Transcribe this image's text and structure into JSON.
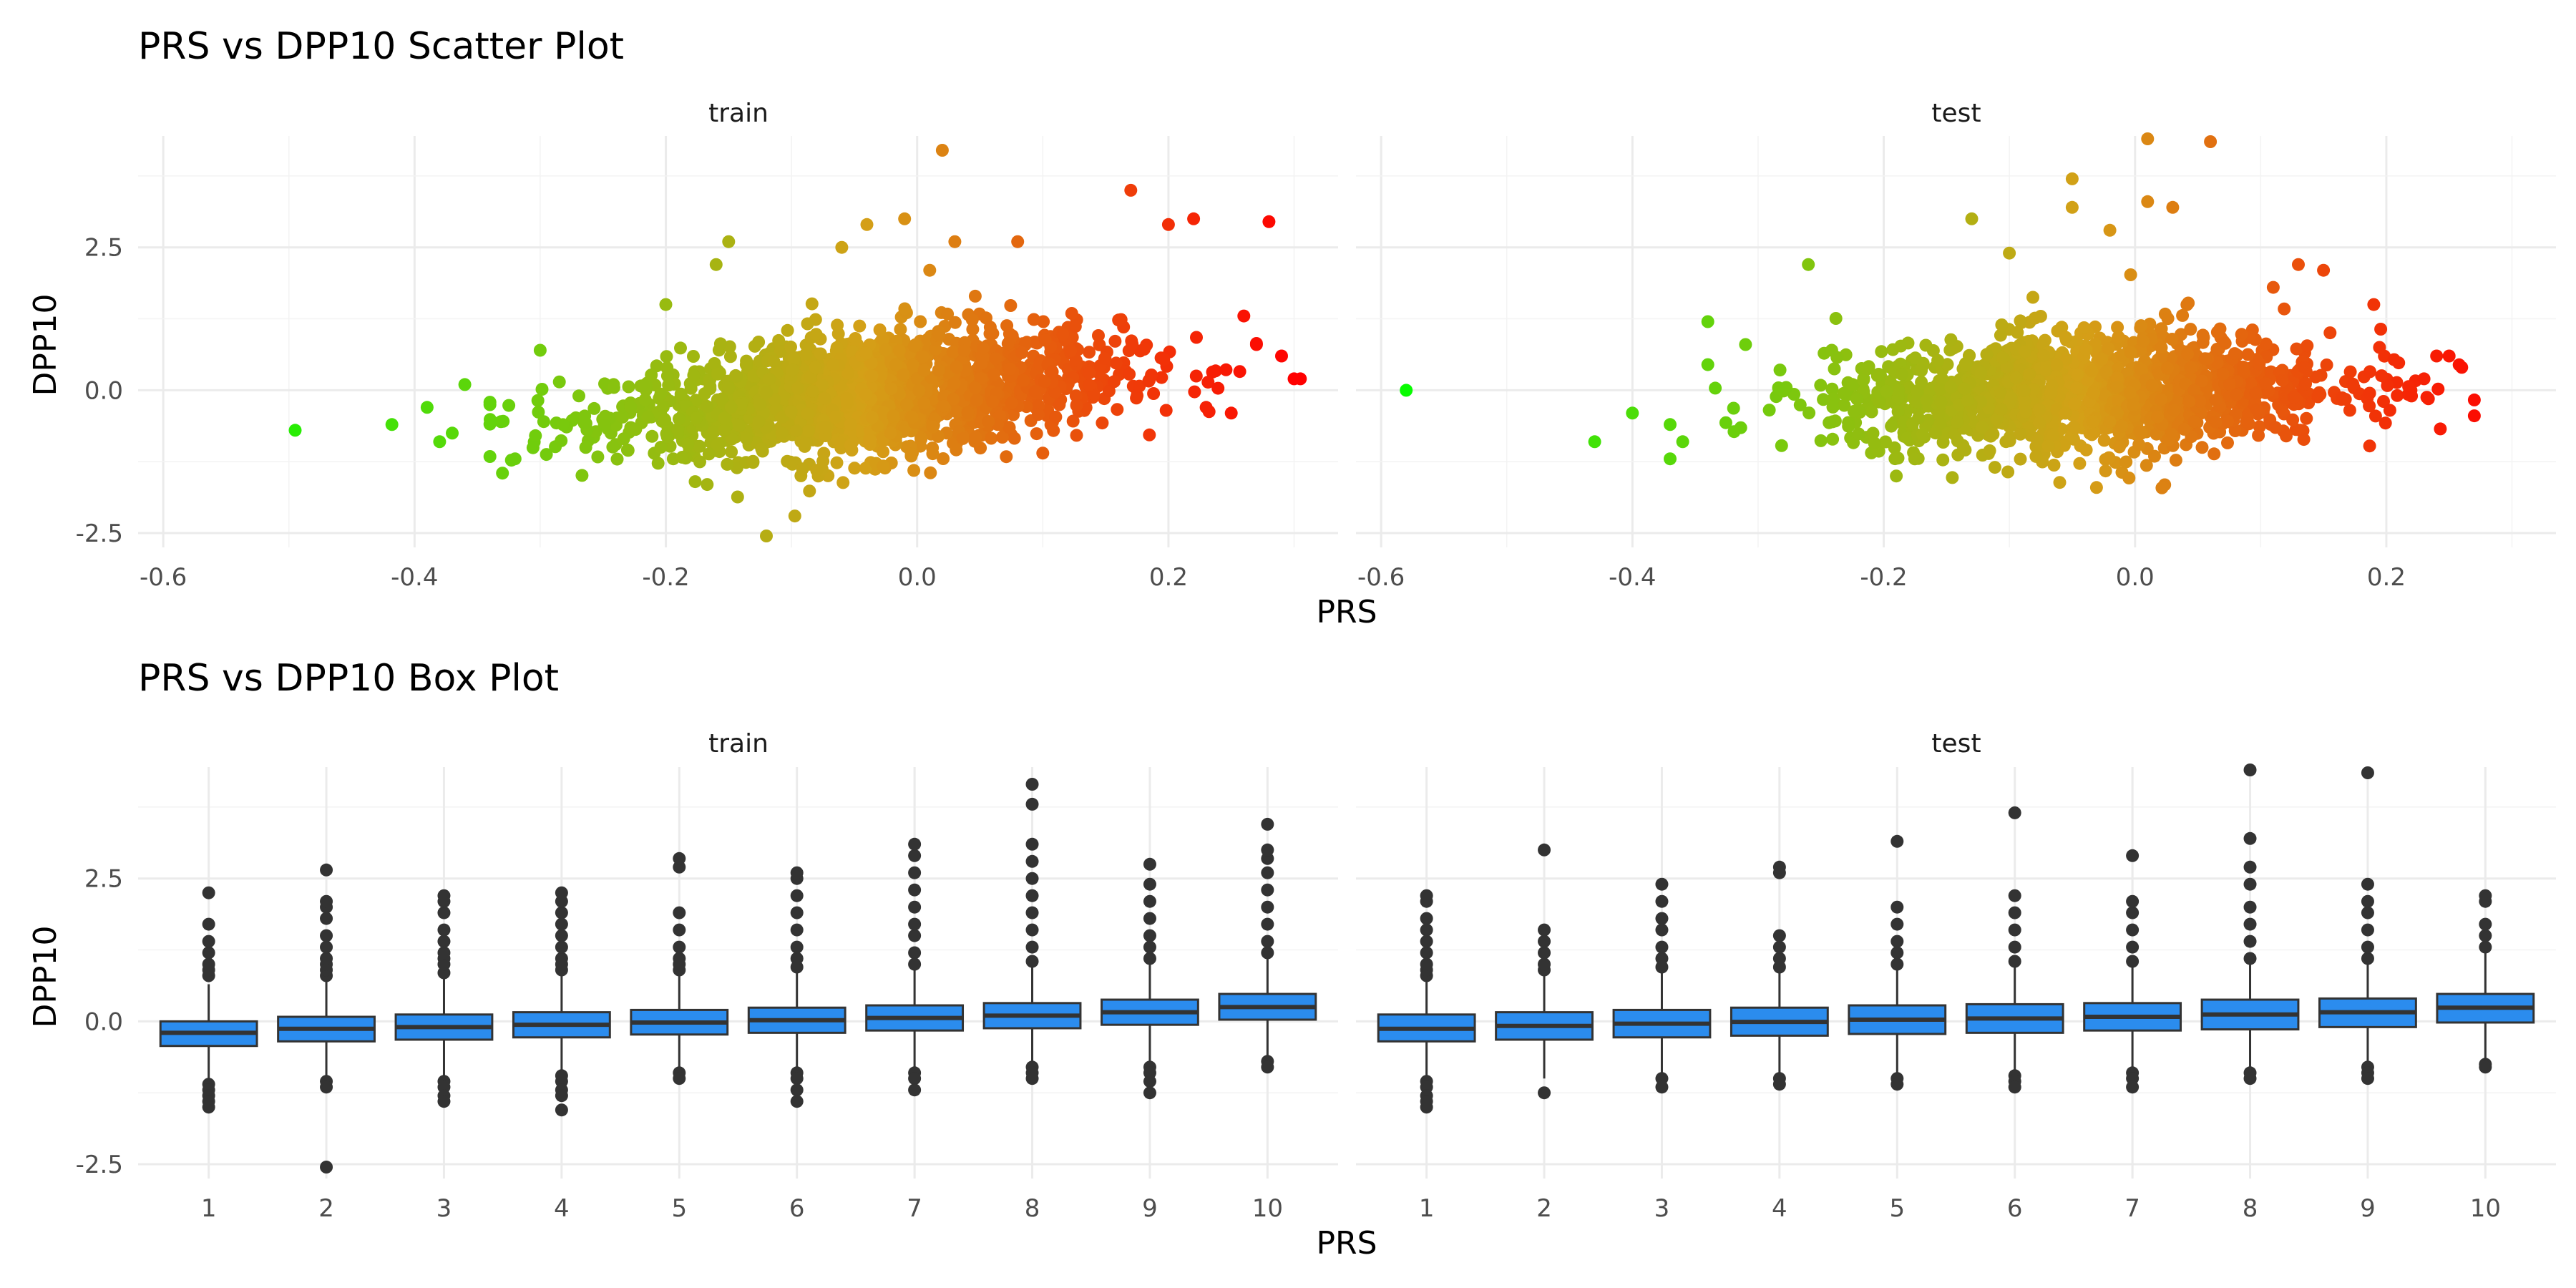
{
  "chart_data": [
    {
      "type": "scatter",
      "title": "PRS vs DPP10 Scatter Plot",
      "xlabel": "PRS",
      "ylabel": "DPP10",
      "xlim": [
        -0.62,
        0.335
      ],
      "ylim": [
        -2.75,
        4.45
      ],
      "x_ticks": [
        -0.6,
        -0.4,
        -0.2,
        0.0,
        0.2
      ],
      "x_tick_labels": [
        "-0.6",
        "-0.4",
        "-0.2",
        "0.0",
        "0.2"
      ],
      "y_ticks": [
        -2.5,
        0.0,
        2.5
      ],
      "y_tick_labels": [
        "-2.5",
        "0.0",
        "2.5"
      ],
      "grid": true,
      "color_gradient": {
        "low": "#00ff00",
        "mid": "#d4a017",
        "high": "#ff0000",
        "range": [
          -0.6,
          0.3
        ]
      },
      "panels": [
        {
          "name": "train",
          "points": [
            [
              -0.495,
              -0.7
            ],
            [
              -0.418,
              -0.6
            ],
            [
              -0.39,
              -0.3
            ],
            [
              -0.38,
              -0.9
            ],
            [
              -0.37,
              -0.75
            ],
            [
              -0.36,
              0.1
            ],
            [
              -0.33,
              -1.45
            ],
            [
              -0.32,
              -1.2
            ],
            [
              -0.3,
              0.7
            ],
            [
              -0.2,
              1.5
            ],
            [
              -0.16,
              2.2
            ],
            [
              -0.15,
              2.6
            ],
            [
              -0.12,
              -2.55
            ],
            [
              -0.08,
              -1.4
            ],
            [
              -0.06,
              2.5
            ],
            [
              -0.04,
              2.9
            ],
            [
              -0.01,
              3.0
            ],
            [
              0.01,
              2.1
            ],
            [
              0.02,
              4.2
            ],
            [
              0.03,
              2.6
            ],
            [
              0.08,
              2.6
            ],
            [
              0.1,
              -1.1
            ],
            [
              0.17,
              3.5
            ],
            [
              0.2,
              2.9
            ],
            [
              0.22,
              3.0
            ],
            [
              0.23,
              -0.3
            ],
            [
              0.25,
              -0.4
            ],
            [
              0.28,
              2.95
            ],
            [
              0.29,
              0.6
            ],
            [
              0.3,
              0.2
            ],
            [
              0.305,
              0.2
            ],
            [
              0.26,
              1.3
            ],
            [
              0.27,
              0.8
            ]
          ]
        },
        {
          "name": "test",
          "points": [
            [
              -0.58,
              0.0
            ],
            [
              -0.43,
              -0.9
            ],
            [
              -0.4,
              -0.4
            ],
            [
              -0.34,
              1.2
            ],
            [
              -0.37,
              -0.6
            ],
            [
              -0.37,
              -1.2
            ],
            [
              -0.36,
              -0.9
            ],
            [
              -0.31,
              0.8
            ],
            [
              -0.26,
              2.2
            ],
            [
              -0.19,
              -1.5
            ],
            [
              -0.13,
              3.0
            ],
            [
              -0.1,
              2.4
            ],
            [
              -0.05,
              3.7
            ],
            [
              -0.05,
              3.2
            ],
            [
              -0.02,
              2.8
            ],
            [
              0.01,
              4.4
            ],
            [
              0.01,
              3.3
            ],
            [
              0.03,
              3.2
            ],
            [
              0.06,
              4.35
            ],
            [
              0.11,
              1.8
            ],
            [
              0.13,
              2.2
            ],
            [
              0.15,
              2.1
            ],
            [
              0.19,
              1.5
            ],
            [
              0.24,
              0.6
            ],
            [
              0.25,
              0.6
            ],
            [
              0.26,
              0.4
            ],
            [
              0.23,
              0.2
            ],
            [
              0.22,
              -0.1
            ]
          ]
        }
      ]
    },
    {
      "type": "box",
      "title": "PRS vs DPP10 Box Plot",
      "xlabel": "PRS",
      "ylabel": "DPP10",
      "categories": [
        "1",
        "2",
        "3",
        "4",
        "5",
        "6",
        "7",
        "8",
        "9",
        "10"
      ],
      "ylim": [
        -2.75,
        4.45
      ],
      "y_ticks": [
        -2.5,
        0.0,
        2.5
      ],
      "y_tick_labels": [
        "-2.5",
        "0.0",
        "2.5"
      ],
      "grid": true,
      "box_fill": "#2b8cee",
      "panels": [
        {
          "name": "train",
          "boxes": [
            {
              "q1": -0.43,
              "median": -0.2,
              "q3": 0.0,
              "whisker_low": -1.05,
              "whisker_high": 0.65,
              "outliers": [
                -1.1,
                -1.2,
                -1.3,
                -1.4,
                -1.5,
                0.8,
                0.9,
                1.0,
                1.2,
                1.4,
                1.7,
                2.25
              ]
            },
            {
              "q1": -0.35,
              "median": -0.13,
              "q3": 0.08,
              "whisker_low": -1.0,
              "whisker_high": 0.75,
              "outliers": [
                -1.05,
                -1.15,
                -2.55,
                0.8,
                0.9,
                1.0,
                1.1,
                1.3,
                1.5,
                1.8,
                2.0,
                2.1,
                2.65
              ]
            },
            {
              "q1": -0.32,
              "median": -0.1,
              "q3": 0.12,
              "whisker_low": -1.0,
              "whisker_high": 0.8,
              "outliers": [
                -1.05,
                -1.15,
                -1.3,
                -1.4,
                0.85,
                1.0,
                1.1,
                1.2,
                1.4,
                1.6,
                1.9,
                2.1,
                2.2
              ]
            },
            {
              "q1": -0.28,
              "median": -0.06,
              "q3": 0.16,
              "whisker_low": -0.9,
              "whisker_high": 0.85,
              "outliers": [
                -0.95,
                -1.05,
                -1.2,
                -1.3,
                -1.55,
                0.9,
                1.0,
                1.1,
                1.3,
                1.5,
                1.7,
                1.9,
                2.1,
                2.25
              ]
            },
            {
              "q1": -0.23,
              "median": -0.02,
              "q3": 0.2,
              "whisker_low": -0.85,
              "whisker_high": 0.85,
              "outliers": [
                -0.9,
                -1.0,
                0.9,
                1.0,
                1.1,
                1.3,
                1.6,
                1.9,
                2.7,
                2.85
              ]
            },
            {
              "q1": -0.2,
              "median": 0.02,
              "q3": 0.24,
              "whisker_low": -0.85,
              "whisker_high": 0.9,
              "outliers": [
                -0.9,
                -1.0,
                -1.2,
                -1.4,
                0.95,
                1.1,
                1.3,
                1.6,
                1.9,
                2.2,
                2.5,
                2.6
              ]
            },
            {
              "q1": -0.16,
              "median": 0.06,
              "q3": 0.28,
              "whisker_low": -0.85,
              "whisker_high": 0.95,
              "outliers": [
                -0.9,
                -1.0,
                -1.2,
                1.0,
                1.2,
                1.5,
                1.7,
                2.0,
                2.3,
                2.6,
                2.9,
                3.1
              ]
            },
            {
              "q1": -0.12,
              "median": 0.1,
              "q3": 0.32,
              "whisker_low": -0.75,
              "whisker_high": 1.0,
              "outliers": [
                -0.8,
                -0.9,
                -1.0,
                1.05,
                1.3,
                1.6,
                1.9,
                2.2,
                2.5,
                2.8,
                3.1,
                3.8,
                4.15
              ]
            },
            {
              "q1": -0.06,
              "median": 0.16,
              "q3": 0.38,
              "whisker_low": -0.75,
              "whisker_high": 1.05,
              "outliers": [
                -0.8,
                -0.9,
                -1.05,
                -1.25,
                1.1,
                1.3,
                1.5,
                1.8,
                2.1,
                2.4,
                2.75
              ]
            },
            {
              "q1": 0.03,
              "median": 0.25,
              "q3": 0.48,
              "whisker_low": -0.65,
              "whisker_high": 1.15,
              "outliers": [
                -0.7,
                -0.8,
                1.2,
                1.4,
                1.7,
                2.0,
                2.3,
                2.6,
                2.85,
                3.0,
                3.45
              ]
            }
          ]
        },
        {
          "name": "test",
          "boxes": [
            {
              "q1": -0.35,
              "median": -0.13,
              "q3": 0.12,
              "whisker_low": -1.0,
              "whisker_high": 0.75,
              "outliers": [
                -1.05,
                -1.15,
                -1.3,
                -1.4,
                -1.5,
                0.8,
                0.9,
                1.0,
                1.2,
                1.4,
                1.6,
                1.8,
                2.1,
                2.2
              ]
            },
            {
              "q1": -0.32,
              "median": -0.08,
              "q3": 0.16,
              "whisker_low": -1.0,
              "whisker_high": 0.85,
              "outliers": [
                -1.25,
                0.9,
                1.0,
                1.2,
                1.4,
                1.6,
                3.0
              ]
            },
            {
              "q1": -0.28,
              "median": -0.04,
              "q3": 0.2,
              "whisker_low": -0.95,
              "whisker_high": 0.9,
              "outliers": [
                -1.0,
                -1.15,
                0.95,
                1.1,
                1.3,
                1.6,
                1.8,
                2.1,
                2.4
              ]
            },
            {
              "q1": -0.25,
              "median": -0.01,
              "q3": 0.24,
              "whisker_low": -0.9,
              "whisker_high": 0.9,
              "outliers": [
                -1.0,
                -1.1,
                0.95,
                1.1,
                1.3,
                1.5,
                2.6,
                2.7
              ]
            },
            {
              "q1": -0.22,
              "median": 0.03,
              "q3": 0.28,
              "whisker_low": -0.9,
              "whisker_high": 0.95,
              "outliers": [
                -1.0,
                -1.1,
                1.0,
                1.2,
                1.4,
                1.7,
                2.0,
                3.15
              ]
            },
            {
              "q1": -0.2,
              "median": 0.05,
              "q3": 0.3,
              "whisker_low": -0.9,
              "whisker_high": 1.0,
              "outliers": [
                -0.95,
                -1.05,
                -1.15,
                1.05,
                1.3,
                1.6,
                1.9,
                2.2,
                3.65
              ]
            },
            {
              "q1": -0.16,
              "median": 0.08,
              "q3": 0.32,
              "whisker_low": -0.85,
              "whisker_high": 1.0,
              "outliers": [
                -0.9,
                -1.0,
                -1.15,
                1.05,
                1.3,
                1.6,
                1.9,
                2.1,
                2.9
              ]
            },
            {
              "q1": -0.14,
              "median": 0.12,
              "q3": 0.38,
              "whisker_low": -0.8,
              "whisker_high": 1.05,
              "outliers": [
                -0.9,
                -1.0,
                1.1,
                1.4,
                1.7,
                2.0,
                2.4,
                2.7,
                3.2,
                4.4
              ]
            },
            {
              "q1": -0.1,
              "median": 0.16,
              "q3": 0.4,
              "whisker_low": -0.75,
              "whisker_high": 1.05,
              "outliers": [
                -0.8,
                -0.9,
                -1.0,
                1.1,
                1.3,
                1.6,
                1.9,
                2.1,
                2.4,
                4.35
              ]
            },
            {
              "q1": -0.02,
              "median": 0.24,
              "q3": 0.48,
              "whisker_low": -0.7,
              "whisker_high": 1.2,
              "outliers": [
                -0.75,
                -0.8,
                1.3,
                1.5,
                1.7,
                2.1,
                2.2
              ]
            }
          ]
        }
      ]
    }
  ]
}
